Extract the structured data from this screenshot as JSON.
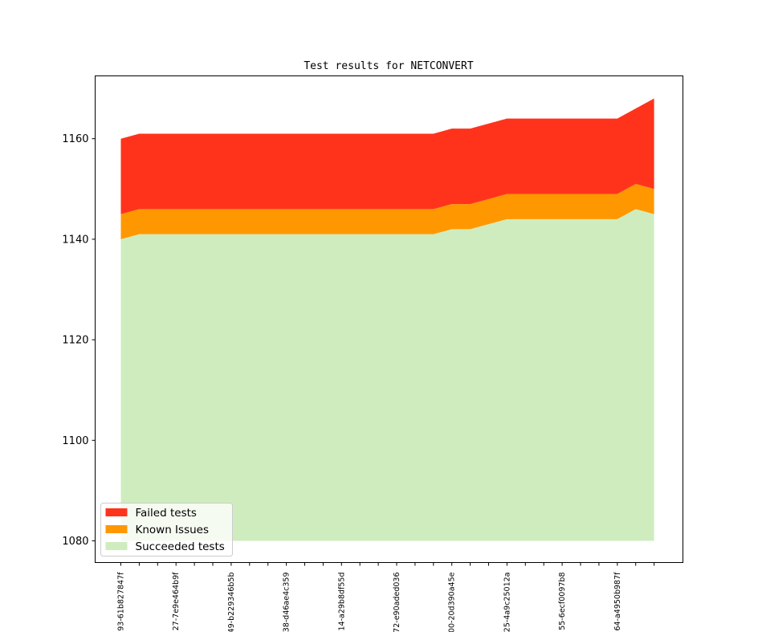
{
  "chart_data": {
    "type": "area",
    "title": "Test results for NETCONVERT",
    "xlabel": "",
    "ylabel": "",
    "ylim": [
      1076,
      1172
    ],
    "yticks": [
      1080,
      1100,
      1120,
      1140,
      1160
    ],
    "baseline": 1080,
    "x_tick_labels": [
      {
        "index": 0,
        "label": "93-61b827847f"
      },
      {
        "index": 3,
        "label": "27-7e9e464b9f"
      },
      {
        "index": 6,
        "label": "49-b229346b5b"
      },
      {
        "index": 9,
        "label": "38-d46ae4c359"
      },
      {
        "index": 12,
        "label": "14-a29b8df55d"
      },
      {
        "index": 15,
        "label": "72-e90aded036"
      },
      {
        "index": 18,
        "label": "00-20d390a45e"
      },
      {
        "index": 21,
        "label": "25-4a9c25012a"
      },
      {
        "index": 24,
        "label": "55-6ecf0097b8"
      },
      {
        "index": 27,
        "label": "64-a4950b987f"
      }
    ],
    "n_points": 30,
    "series": [
      {
        "name": "Succeeded tests",
        "color": "#cfecbf",
        "values": [
          1140,
          1141,
          1141,
          1141,
          1141,
          1141,
          1141,
          1141,
          1141,
          1141,
          1141,
          1141,
          1141,
          1141,
          1141,
          1141,
          1141,
          1141,
          1142,
          1142,
          1143,
          1144,
          1144,
          1144,
          1144,
          1144,
          1144,
          1144,
          1146,
          1145
        ]
      },
      {
        "name": "Known Issues",
        "color": "#ff9800",
        "values": [
          5,
          5,
          5,
          5,
          5,
          5,
          5,
          5,
          5,
          5,
          5,
          5,
          5,
          5,
          5,
          5,
          5,
          5,
          5,
          5,
          5,
          5,
          5,
          5,
          5,
          5,
          5,
          5,
          5,
          5
        ]
      },
      {
        "name": "Failed tests",
        "color": "#ff331c",
        "values": [
          15,
          15,
          15,
          15,
          15,
          15,
          15,
          15,
          15,
          15,
          15,
          15,
          15,
          15,
          15,
          15,
          15,
          15,
          15,
          15,
          15,
          15,
          15,
          15,
          15,
          15,
          15,
          15,
          15,
          18
        ]
      }
    ],
    "legend": {
      "position": "lower-left",
      "entries": [
        "Failed tests",
        "Known Issues",
        "Succeeded tests"
      ]
    },
    "grid": false
  }
}
